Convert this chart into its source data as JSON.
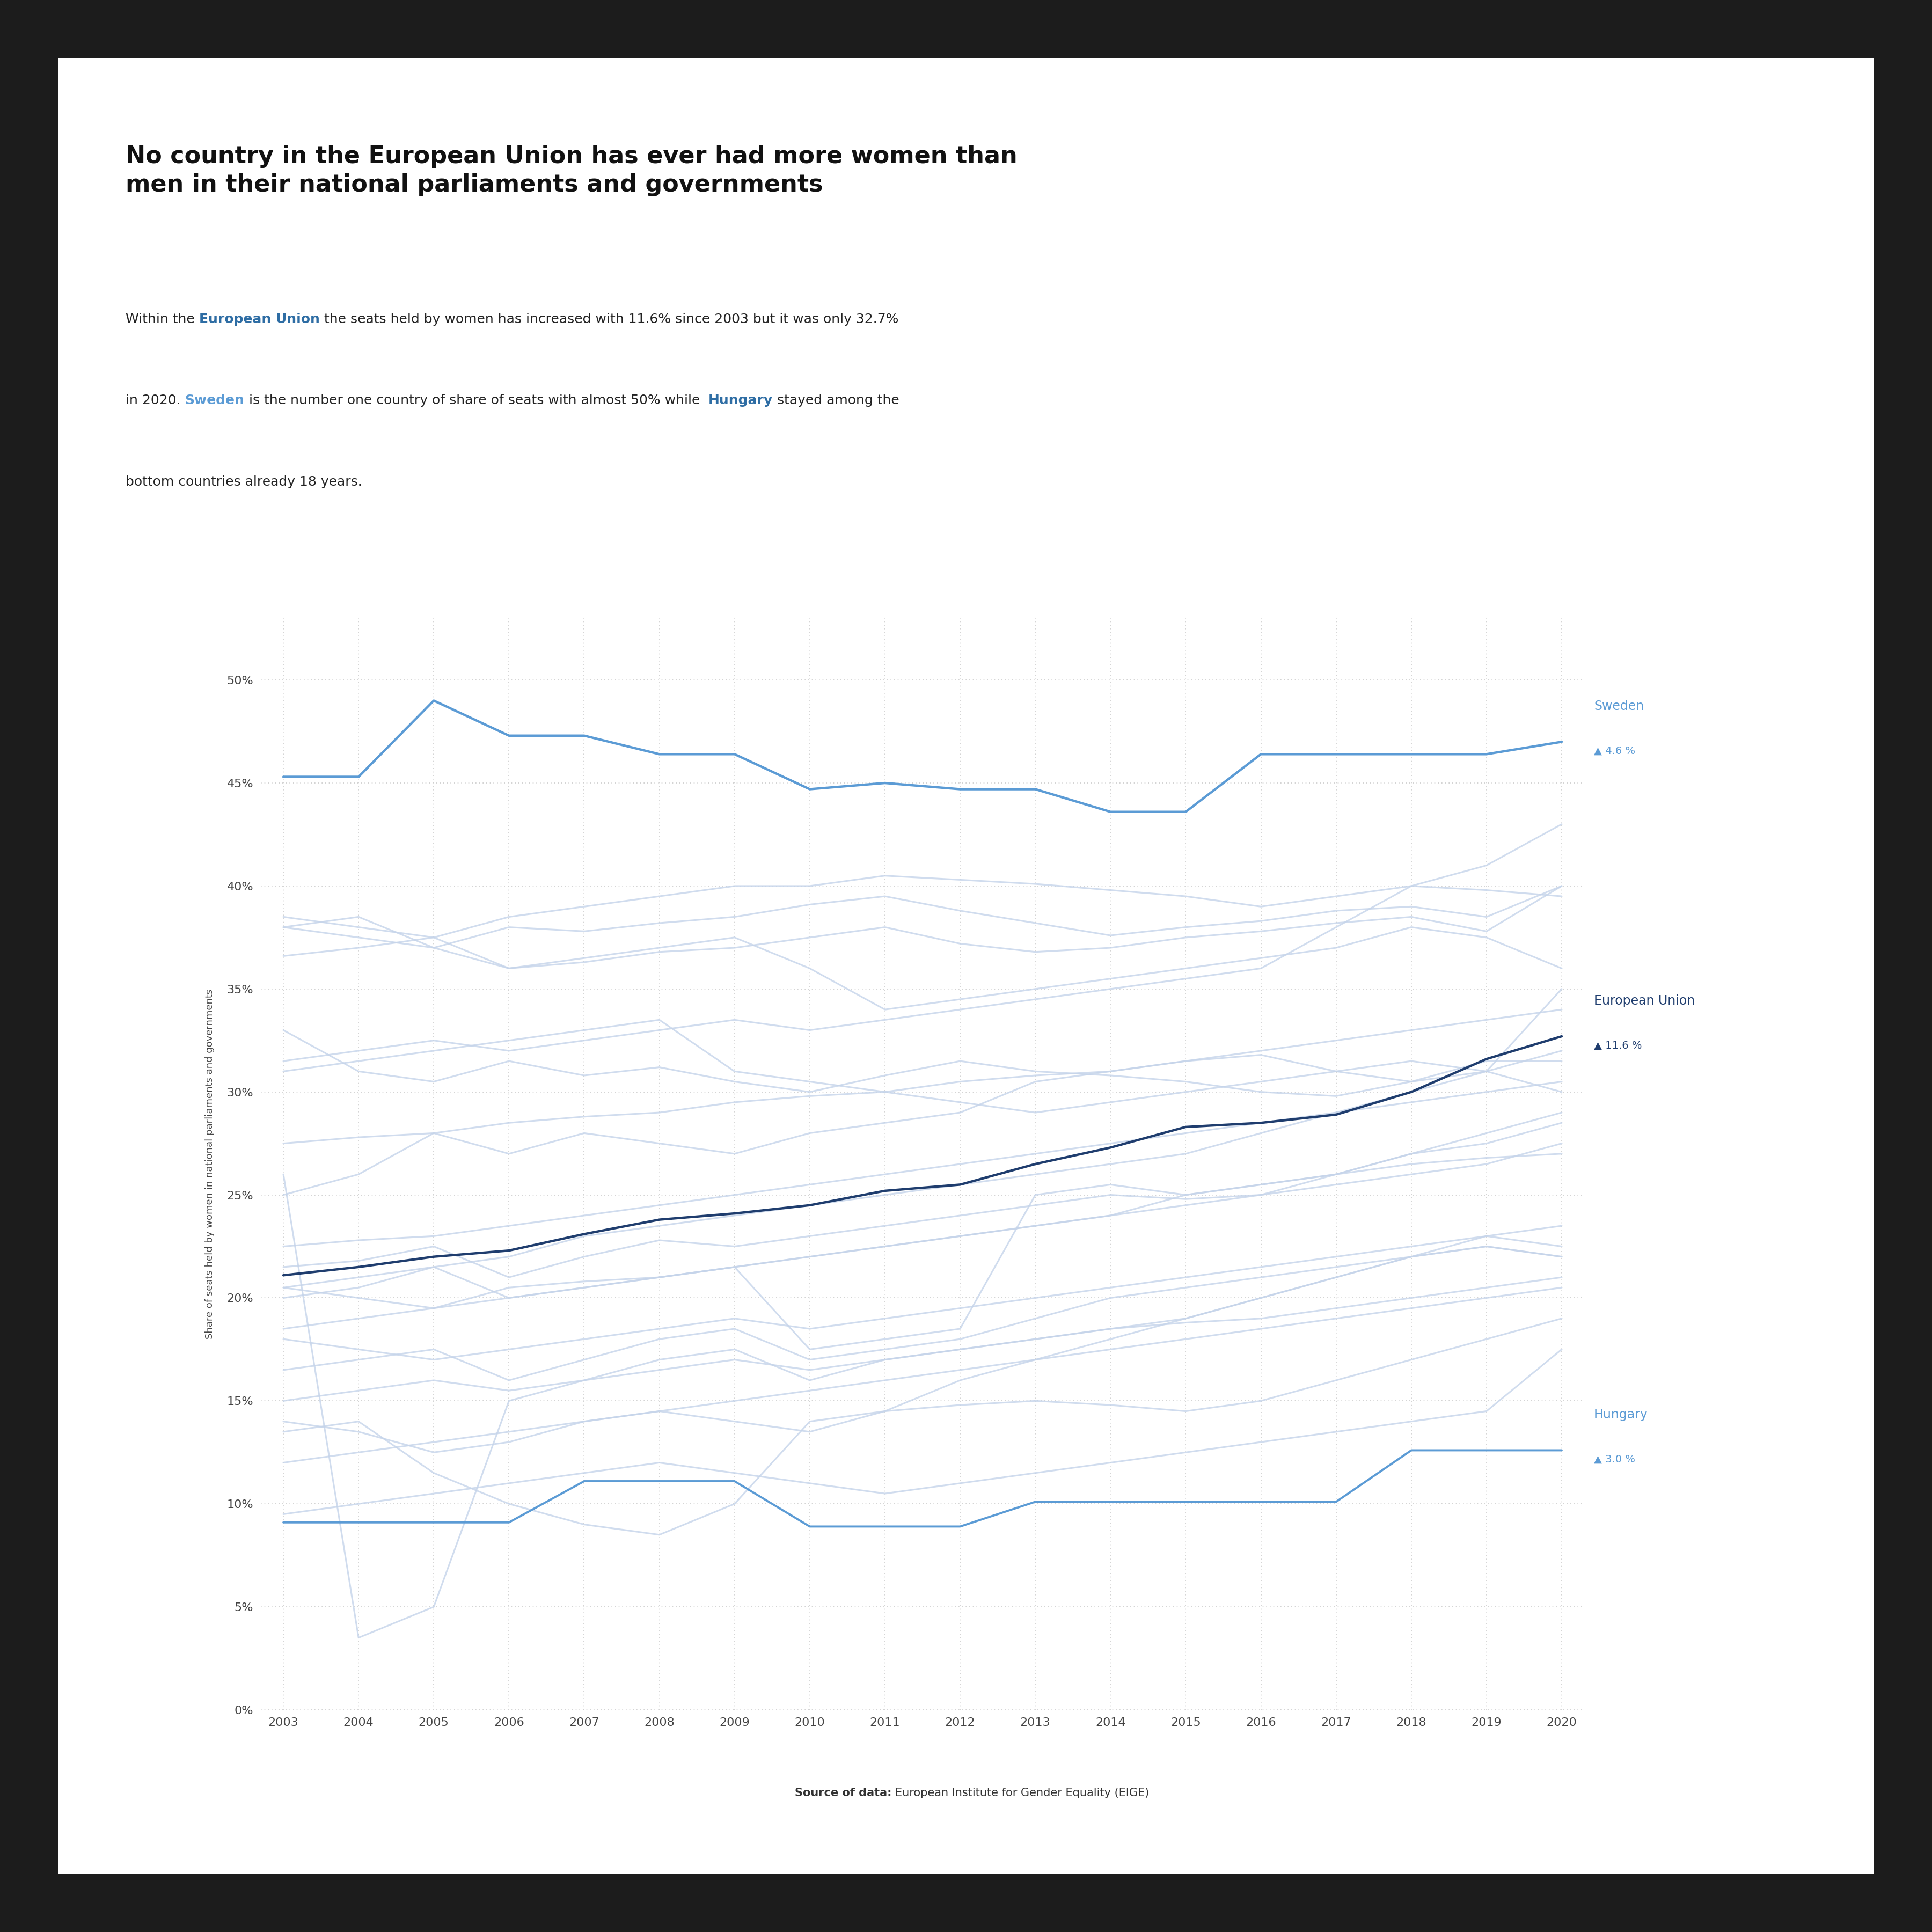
{
  "title_line1": "No country in the European Union has ever had more women than",
  "title_line2": "men in their national parliaments and governments",
  "years": [
    2003,
    2004,
    2005,
    2006,
    2007,
    2008,
    2009,
    2010,
    2011,
    2012,
    2013,
    2014,
    2015,
    2016,
    2017,
    2018,
    2019,
    2020
  ],
  "sweden": [
    45.3,
    45.3,
    49.0,
    47.3,
    47.3,
    46.4,
    46.4,
    44.7,
    45.0,
    44.7,
    44.7,
    43.6,
    43.6,
    46.4,
    46.4,
    46.4,
    46.4,
    47.0
  ],
  "eu": [
    21.1,
    21.5,
    22.0,
    22.3,
    23.1,
    23.8,
    24.1,
    24.5,
    25.2,
    25.5,
    26.5,
    27.3,
    28.3,
    28.5,
    28.9,
    30.0,
    31.6,
    32.7
  ],
  "hungary": [
    9.1,
    9.1,
    9.1,
    9.1,
    11.1,
    11.1,
    11.1,
    8.9,
    8.9,
    8.9,
    10.1,
    10.1,
    10.1,
    10.1,
    10.1,
    12.6,
    12.6,
    12.6
  ],
  "other_countries": [
    [
      38.0,
      37.5,
      37.0,
      38.0,
      37.8,
      38.2,
      38.5,
      39.1,
      39.5,
      38.8,
      38.2,
      37.6,
      38.0,
      38.3,
      38.8,
      39.0,
      38.5,
      40.0
    ],
    [
      36.6,
      37.0,
      37.5,
      36.0,
      36.3,
      36.8,
      37.0,
      37.5,
      38.0,
      37.2,
      36.8,
      37.0,
      37.5,
      37.8,
      38.2,
      38.5,
      37.8,
      40.0
    ],
    [
      33.0,
      31.0,
      30.5,
      31.5,
      30.8,
      31.2,
      30.5,
      30.0,
      30.8,
      31.5,
      31.0,
      30.8,
      30.5,
      30.0,
      29.8,
      30.5,
      31.0,
      35.0
    ],
    [
      38.5,
      38.0,
      37.5,
      38.5,
      39.0,
      39.5,
      40.0,
      40.0,
      40.5,
      40.3,
      40.1,
      39.8,
      39.5,
      39.0,
      39.5,
      40.0,
      39.8,
      39.5
    ],
    [
      20.5,
      20.0,
      19.5,
      20.5,
      20.8,
      21.0,
      21.5,
      17.5,
      18.0,
      18.5,
      25.0,
      25.5,
      25.0,
      25.5,
      26.0,
      26.5,
      26.8,
      27.0
    ],
    [
      21.5,
      21.8,
      22.5,
      21.0,
      22.0,
      22.8,
      22.5,
      23.0,
      23.5,
      24.0,
      24.5,
      25.0,
      24.8,
      25.0,
      25.5,
      26.0,
      26.5,
      27.5
    ],
    [
      20.0,
      20.5,
      21.5,
      20.0,
      20.5,
      21.0,
      21.5,
      22.0,
      22.5,
      23.0,
      23.5,
      24.0,
      25.0,
      25.5,
      26.0,
      27.0,
      27.5,
      28.5
    ],
    [
      27.5,
      27.8,
      28.0,
      28.5,
      28.8,
      29.0,
      29.5,
      29.8,
      30.0,
      30.5,
      30.8,
      31.0,
      31.5,
      32.0,
      32.5,
      33.0,
      33.5,
      34.0
    ],
    [
      18.5,
      19.0,
      19.5,
      20.0,
      20.5,
      21.0,
      21.5,
      22.0,
      22.5,
      23.0,
      23.5,
      24.0,
      24.5,
      25.0,
      26.0,
      27.0,
      28.0,
      29.0
    ],
    [
      20.5,
      21.0,
      21.5,
      22.0,
      23.0,
      23.5,
      24.0,
      24.5,
      25.0,
      25.5,
      26.0,
      26.5,
      27.0,
      28.0,
      29.0,
      30.0,
      31.0,
      32.0
    ],
    [
      31.0,
      31.5,
      32.0,
      32.5,
      33.0,
      33.5,
      31.0,
      30.5,
      30.0,
      29.5,
      29.0,
      29.5,
      30.0,
      30.5,
      31.0,
      31.5,
      31.0,
      30.0
    ],
    [
      14.0,
      13.5,
      12.5,
      13.0,
      14.0,
      14.5,
      14.0,
      13.5,
      14.5,
      16.0,
      17.0,
      18.0,
      19.0,
      20.0,
      21.0,
      22.0,
      23.0,
      22.5
    ],
    [
      25.0,
      26.0,
      28.0,
      27.0,
      28.0,
      27.5,
      27.0,
      28.0,
      28.5,
      29.0,
      30.5,
      31.0,
      31.5,
      31.8,
      31.0,
      30.5,
      31.5,
      31.5
    ],
    [
      26.0,
      3.5,
      5.0,
      15.0,
      16.0,
      16.5,
      17.0,
      16.5,
      17.0,
      17.5,
      18.0,
      18.5,
      18.8,
      19.0,
      19.5,
      20.0,
      20.5,
      21.0
    ],
    [
      13.5,
      14.0,
      11.5,
      10.0,
      9.0,
      8.5,
      10.0,
      14.0,
      14.5,
      14.8,
      15.0,
      14.8,
      14.5,
      15.0,
      16.0,
      17.0,
      18.0,
      19.0
    ],
    [
      18.0,
      17.5,
      17.0,
      17.5,
      18.0,
      18.5,
      19.0,
      18.5,
      19.0,
      19.5,
      20.0,
      20.5,
      21.0,
      21.5,
      22.0,
      22.5,
      23.0,
      23.5
    ],
    [
      15.0,
      15.5,
      16.0,
      15.5,
      16.0,
      17.0,
      17.5,
      16.0,
      17.0,
      17.5,
      18.0,
      18.5,
      19.0,
      20.0,
      21.0,
      22.0,
      22.5,
      22.0
    ],
    [
      12.0,
      12.5,
      13.0,
      13.5,
      14.0,
      14.5,
      15.0,
      15.5,
      16.0,
      16.5,
      17.0,
      17.5,
      18.0,
      18.5,
      19.0,
      19.5,
      20.0,
      20.5
    ],
    [
      9.5,
      10.0,
      10.5,
      11.0,
      11.5,
      12.0,
      11.5,
      11.0,
      10.5,
      11.0,
      11.5,
      12.0,
      12.5,
      13.0,
      13.5,
      14.0,
      14.5,
      17.5
    ],
    [
      22.5,
      22.8,
      23.0,
      23.5,
      24.0,
      24.5,
      25.0,
      25.5,
      26.0,
      26.5,
      27.0,
      27.5,
      28.0,
      28.5,
      29.0,
      29.5,
      30.0,
      30.5
    ],
    [
      16.5,
      17.0,
      17.5,
      16.0,
      17.0,
      18.0,
      18.5,
      17.0,
      17.5,
      18.0,
      19.0,
      20.0,
      20.5,
      21.0,
      21.5,
      22.0,
      22.5,
      22.0
    ],
    [
      31.5,
      32.0,
      32.5,
      32.0,
      32.5,
      33.0,
      33.5,
      33.0,
      33.5,
      34.0,
      34.5,
      35.0,
      35.5,
      36.0,
      38.0,
      40.0,
      41.0,
      43.0
    ],
    [
      38.0,
      38.5,
      37.0,
      36.0,
      36.5,
      37.0,
      37.5,
      36.0,
      34.0,
      34.5,
      35.0,
      35.5,
      36.0,
      36.5,
      37.0,
      38.0,
      37.5,
      36.0
    ]
  ],
  "outer_bg": "#1c1c1c",
  "card_bg": "#ffffff",
  "sweden_color": "#5b9bd5",
  "eu_color": "#1f3d6e",
  "hungary_color": "#5b9bd5",
  "other_color": "#c5d4ea",
  "other_alpha": 0.8,
  "grid_color": "#cccccc",
  "tick_color": "#444444",
  "title_color": "#111111",
  "subtitle_color": "#222222",
  "eu_highlight_color": "#2e6da4",
  "sweden_highlight_color": "#5b9bd5",
  "hungary_highlight_color": "#2e6da4",
  "ylabel": "Share of seats held by women in national parliaments and governments",
  "yticks": [
    0,
    5,
    10,
    15,
    20,
    25,
    30,
    35,
    40,
    45,
    50
  ],
  "ymax": 53
}
